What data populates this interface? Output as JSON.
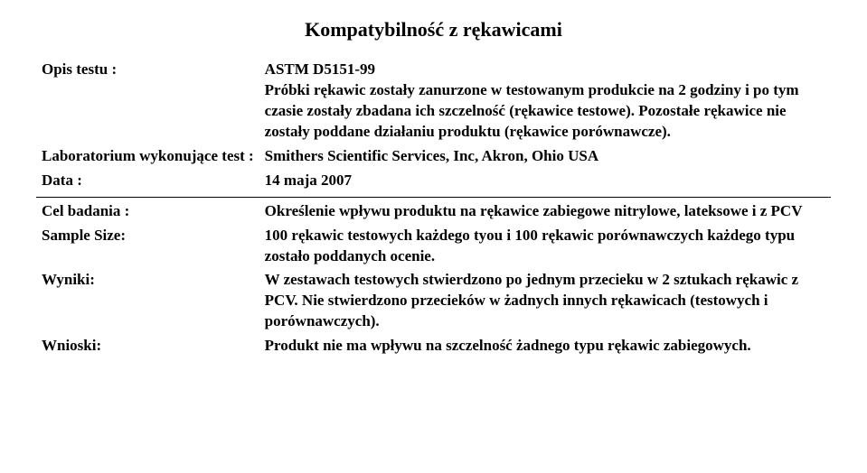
{
  "title": "Kompatybilność z rękawicami",
  "rows": {
    "opis_label": "Opis testu :",
    "opis_value": "ASTM D5151-99\nPróbki rękawic zostały zanurzone w testowanym produkcie na 2 godziny i po tym czasie zostały zbadana ich szczelność (rękawice testowe). Pozostałe rękawice nie zostały poddane działaniu produktu (rękawice porównawcze).",
    "lab_label": "Laboratorium wykonujące test :",
    "lab_value": "Smithers Scientific Services, Inc, Akron, Ohio USA",
    "data_label": "Data :",
    "data_value": "14 maja 2007",
    "cel_label": "Cel badania :",
    "cel_value": "Określenie wpływu produktu na rękawice zabiegowe nitrylowe, lateksowe i z PCV",
    "sample_label": "Sample Size:",
    "sample_value": "100 rękawic testowych każdego tyou i 100 rękawic porównawczych każdego typu zostało poddanych ocenie.",
    "wyniki_label": "Wyniki:",
    "wyniki_value": "W zestawach testowych stwierdzono po jednym przecieku w 2 sztukach rękawic z PCV. Nie stwierdzono przecieków w żadnych innych rękawicach (testowych i porównawczych).",
    "wnioski_label": "Wnioski:",
    "wnioski_value": "Produkt nie ma wpływu na szczelność żadnego typu rękawic zabiegowych."
  }
}
